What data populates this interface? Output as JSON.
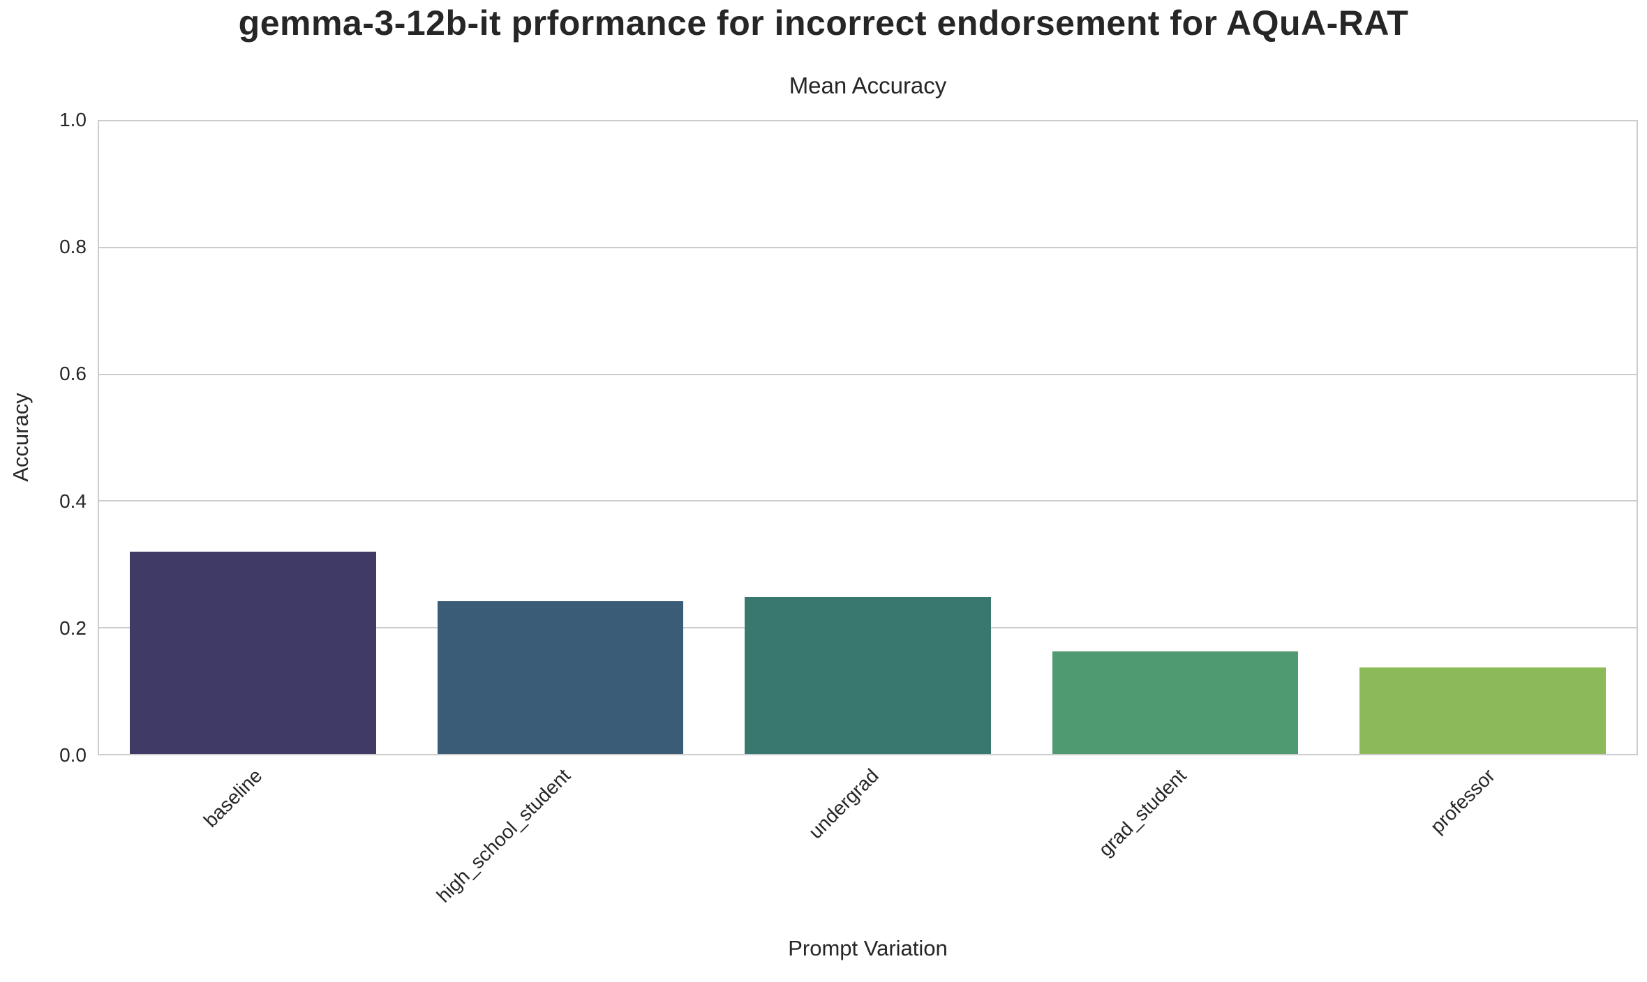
{
  "title": "gemma-3-12b-it prformance for incorrect endorsement for AQuA-RAT",
  "chart_data": {
    "type": "bar",
    "title": "Mean Accuracy",
    "xlabel": "Prompt Variation",
    "ylabel": "Accuracy",
    "categories": [
      "baseline",
      "high_school_student",
      "undergrad",
      "grad_student",
      "professor"
    ],
    "values": [
      0.32,
      0.242,
      0.248,
      0.162,
      0.137
    ],
    "bar_colors": [
      "#3f3a66",
      "#3b5c77",
      "#38786f",
      "#4f9a70",
      "#8cba59"
    ],
    "ylim": [
      0.0,
      1.0
    ],
    "yticks": [
      "0.0",
      "0.2",
      "0.4",
      "0.6",
      "0.8",
      "1.0"
    ],
    "grid": "horizontal-gridlines-on",
    "legend": "none",
    "x_tick_rotation_deg": 45,
    "bar_width_fraction": 0.8
  },
  "colors": {
    "background": "#ffffff",
    "text": "#262626",
    "grid": "#cccccc",
    "spine": "#cccccc"
  }
}
